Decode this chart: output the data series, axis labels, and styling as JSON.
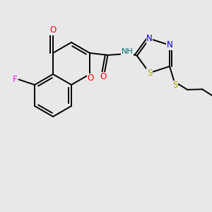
{
  "bg_color": "#e8e8e8",
  "bond_color": "#000000",
  "bond_lw": 1.4,
  "F_color": "#ff00ff",
  "O_color": "#ff0000",
  "N_color": "#0000cc",
  "S_color": "#aaaa00",
  "NH_color": "#007070",
  "xlim": [
    0,
    10
  ],
  "ylim": [
    0,
    8
  ]
}
